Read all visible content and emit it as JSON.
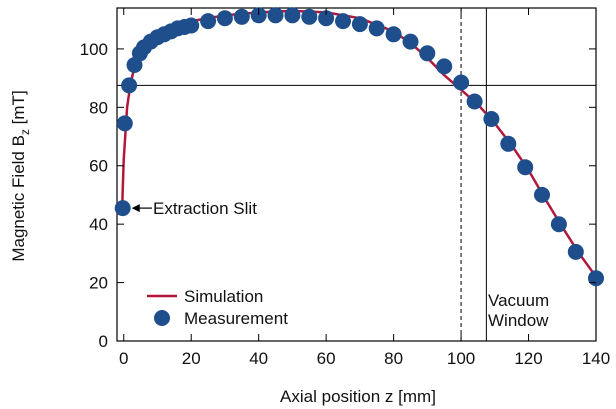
{
  "chart_data": {
    "type": "scatter",
    "xlabel": "Axial position z [mm]",
    "ylabel_main": "Magnetic Field B",
    "ylabel_sub": "z",
    "ylabel_unit": " [mT]",
    "xlim": [
      -2,
      140
    ],
    "ylim": [
      0,
      114
    ],
    "x_ticks": [
      0,
      20,
      40,
      60,
      80,
      100,
      120,
      140
    ],
    "y_ticks": [
      0,
      20,
      40,
      60,
      80,
      100
    ],
    "grid": false,
    "legend_position": "bottom-left",
    "colors": {
      "simulation": "#b2183c",
      "measurement": "#1f4e8c",
      "axis": "#000000"
    },
    "series": [
      {
        "name": "Simulation",
        "kind": "line",
        "x": [
          -0.5,
          0,
          1,
          2,
          3,
          4,
          6,
          8,
          10,
          15,
          20,
          30,
          40,
          50,
          60,
          70,
          80,
          85,
          90,
          95,
          100,
          105,
          110,
          115,
          120,
          125,
          130,
          135,
          140
        ],
        "y": [
          45,
          62,
          80,
          88,
          93,
          96,
          100,
          102.5,
          104.5,
          107.5,
          109.5,
          111.5,
          112.5,
          113,
          112.5,
          110.5,
          106,
          102,
          97,
          91,
          86,
          81,
          74.5,
          67,
          58.5,
          48.5,
          39,
          30,
          22
        ]
      },
      {
        "name": "Measurement",
        "kind": "scatter",
        "x": [
          -0.3,
          0.3,
          1.6,
          3.2,
          4.8,
          6,
          8,
          10,
          12,
          14,
          16,
          18,
          20,
          25,
          30,
          35,
          40,
          45,
          50,
          55,
          60,
          65,
          70,
          75,
          80,
          85,
          90,
          95,
          100,
          104,
          109,
          114,
          119,
          124,
          129,
          134,
          140
        ],
        "y": [
          45.5,
          74.5,
          87.5,
          94.5,
          98.5,
          100.5,
          102.5,
          104,
          105,
          106,
          107,
          107.5,
          108,
          109.5,
          110.5,
          111,
          111.5,
          111.5,
          111.5,
          111,
          110.5,
          109.5,
          108.5,
          107,
          105,
          102.5,
          98.5,
          94,
          88.5,
          82,
          76,
          67.5,
          59.5,
          50,
          40,
          30.5,
          21.5
        ]
      }
    ],
    "reference_lines": {
      "horizontal_y": 87.5,
      "solid_vertical_x": 107.5,
      "dashed_vertical_x": 100
    },
    "annotations": {
      "extraction_slit": {
        "text": "Extraction Slit",
        "x": -0.3,
        "y": 45.5
      },
      "vacuum_line1": "Vacuum",
      "vacuum_line2": "Window"
    }
  }
}
